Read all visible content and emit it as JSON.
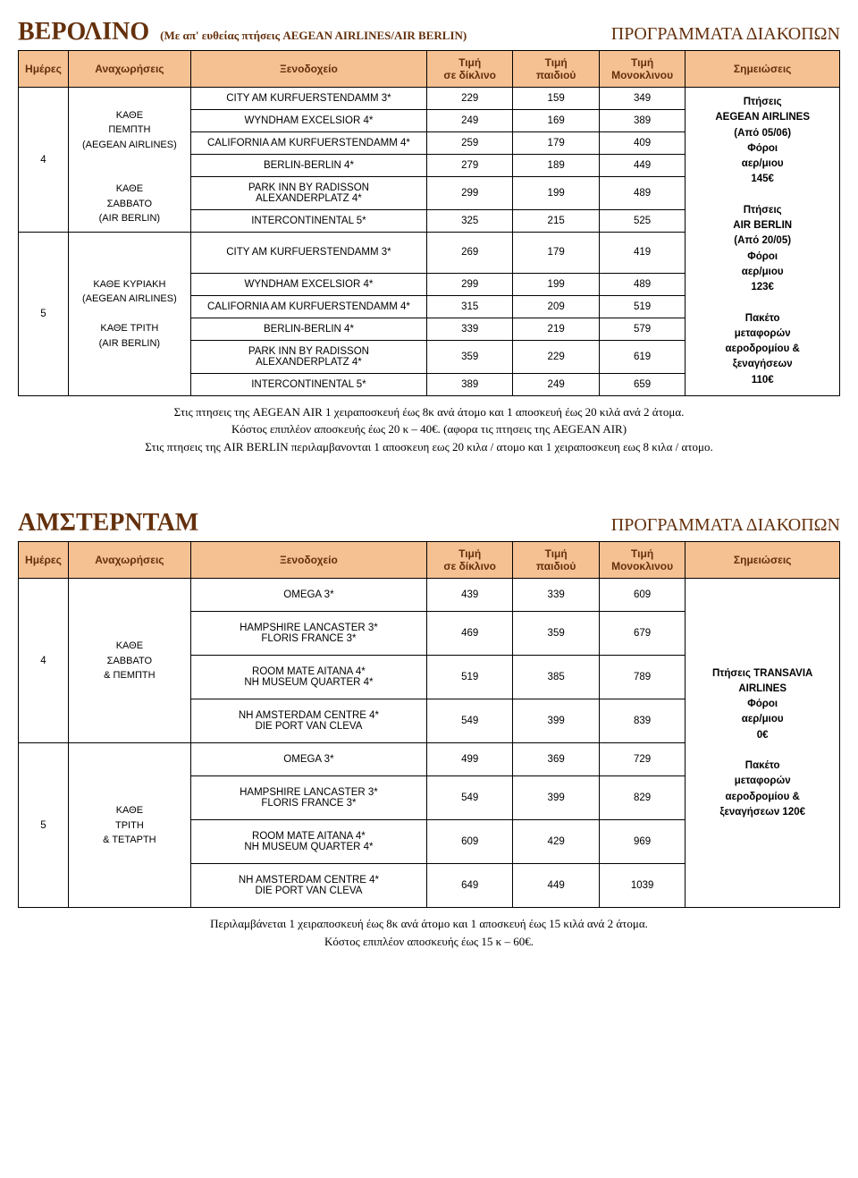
{
  "berlin": {
    "title": "ΒΕΡΟΛΙΝΟ",
    "subtitle": "(Με απ' ευθείας πτήσεις AEGEAN AIRLINES/AIR BERLIN)",
    "program": "ΠΡΟΓΡΑΜΜΑΤΑ ΔΙΑΚΟΠΩΝ",
    "headers": {
      "days": "Ημέρες",
      "departures": "Αναχωρήσεις",
      "hotel": "Ξενοδοχείο",
      "price_double": "Τιμή\nσε δίκλινο",
      "price_child": "Τιμή\nπαιδιού",
      "price_single": "Τιμή\nΜονοκλινου",
      "notes": "Σημειώσεις"
    },
    "block4": {
      "days": "4",
      "dep1": "ΚΑΘΕ\nΠΕΜΠΤΗ\n(AEGEAN AIRLINES)",
      "dep2": "ΚΑΘΕ\nΣΑΒΒΑΤΟ\n(AIR BERLIN)",
      "rows": [
        {
          "hotel": "CITY AM KURFUERSTENDAMM 3*",
          "d": "229",
          "c": "159",
          "s": "349"
        },
        {
          "hotel": "WYNDHAM EXCELSIOR 4*",
          "d": "249",
          "c": "169",
          "s": "389"
        },
        {
          "hotel": "CALIFORNIA AM KURFUERSTENDAMM 4*",
          "d": "259",
          "c": "179",
          "s": "409"
        },
        {
          "hotel": "BERLIN-BERLIN 4*",
          "d": "279",
          "c": "189",
          "s": "449"
        },
        {
          "hotel": "PARK INN BY RADISSON\nALEXANDERPLATZ 4*",
          "d": "299",
          "c": "199",
          "s": "489"
        },
        {
          "hotel": "INTERCONTINENTAL 5*",
          "d": "325",
          "c": "215",
          "s": "525"
        }
      ]
    },
    "block5": {
      "days": "5",
      "dep1": "ΚΑΘΕ ΚΥΡΙΑΚΗ\n(AEGEAN AIRLINES)",
      "dep2": "ΚΑΘΕ ΤΡΙΤΗ\n(AIR BERLIN)",
      "rows": [
        {
          "hotel": "CITY AM KURFUERSTENDAMM 3*",
          "d": "269",
          "c": "179",
          "s": "419"
        },
        {
          "hotel": "WYNDHAM EXCELSIOR 4*",
          "d": "299",
          "c": "199",
          "s": "489"
        },
        {
          "hotel": "CALIFORNIA AM KURFUERSTENDAMM 4*",
          "d": "315",
          "c": "209",
          "s": "519"
        },
        {
          "hotel": "BERLIN-BERLIN 4*",
          "d": "339",
          "c": "219",
          "s": "579"
        },
        {
          "hotel": "PARK INN BY RADISSON\nALEXANDERPLATZ 4*",
          "d": "359",
          "c": "229",
          "s": "619"
        },
        {
          "hotel": "INTERCONTINENTAL 5*",
          "d": "389",
          "c": "249",
          "s": "659"
        }
      ]
    },
    "notes": "Πτήσεις\nAEGEAN AIRLINES\n(Από 05/06)\nΦόροι\nαερ/μιου\n145€\n\nΠτήσεις\nAIR BERLIN\n(Από 20/05)\nΦόροι\nαερ/μιου\n123€\n\nΠακέτο\nμεταφορών\nαεροδρομίου &\nξεναγήσεων\n110€",
    "foot1": "Στις πτησεις της AEGEAN AIR 1 χειραποσκευή έως 8κ ανά άτομο και 1 αποσκευή έως 20 κιλά ανά 2 άτομα.",
    "foot2": "Κόστος επιπλέον αποσκευής έως 20 κ – 40€. (αφορα τις πτησεις της AEGEAN AIR)",
    "foot3": "Στις πτησεις της AIR BERLIN περιλαμβανονται 1 αποσκευη εως 20 κιλα / ατομο και 1 χειραποσκευη εως 8 κιλα / ατομο."
  },
  "amsterdam": {
    "title": "ΑΜΣΤΕΡΝΤΑΜ",
    "program": "ΠΡΟΓΡΑΜΜΑΤΑ ΔΙΑΚΟΠΩΝ",
    "headers": {
      "days": "Ημέρες",
      "departures": "Αναχωρήσεις",
      "hotel": "Ξενοδοχείο",
      "price_double": "Τιμή\nσε δίκλινο",
      "price_child": "Τιμή\nπαιδιού",
      "price_single": "Τιμή\nΜονοκλινου",
      "notes": "Σημειώσεις"
    },
    "block4": {
      "days": "4",
      "dep": "ΚΑΘΕ\nΣΑΒΒΑΤΟ\n& ΠΕΜΠΤΗ",
      "rows": [
        {
          "hotel": "OMEGA 3*",
          "d": "439",
          "c": "339",
          "s": "609"
        },
        {
          "hotel": "HAMPSHIRE LANCASTER 3*\nFLORIS FRANCE 3*",
          "d": "469",
          "c": "359",
          "s": "679"
        },
        {
          "hotel": "ROOM MATE AITANA 4*\nNH MUSEUM QUARTER 4*",
          "d": "519",
          "c": "385",
          "s": "789"
        },
        {
          "hotel": "NH AMSTERDAM CENTRE 4*\nDIE PORT VAN CLEVA",
          "d": "549",
          "c": "399",
          "s": "839"
        }
      ]
    },
    "block5": {
      "days": "5",
      "dep": "ΚΑΘΕ\nΤΡΙΤΗ\n& ΤΕΤΑΡΤΗ",
      "rows": [
        {
          "hotel": "OMEGA 3*",
          "d": "499",
          "c": "369",
          "s": "729"
        },
        {
          "hotel": "HAMPSHIRE LANCASTER 3*\nFLORIS FRANCE 3*",
          "d": "549",
          "c": "399",
          "s": "829"
        },
        {
          "hotel": "ROOM MATE AITANA 4*\nNH MUSEUM QUARTER 4*",
          "d": "609",
          "c": "429",
          "s": "969"
        },
        {
          "hotel": "NH AMSTERDAM CENTRE 4*\nDIE PORT VAN CLEVA",
          "d": "649",
          "c": "449",
          "s": "1039"
        }
      ]
    },
    "notes": "Πτήσεις TRANSAVIA\nAIRLINES\nΦόροι\nαερ/μιου\n0€\n\nΠακέτο\nμεταφορών\nαεροδρομίου &\nξεναγήσεων 120€",
    "foot1": "Περιλαμβάνεται 1 χειραποσκευή έως 8κ ανά άτομο και 1 αποσκευή έως 15 κιλά ανά 2 άτομα.",
    "foot2": "Κόστος επιπλέον αποσκευής έως 15 κ – 60€."
  }
}
